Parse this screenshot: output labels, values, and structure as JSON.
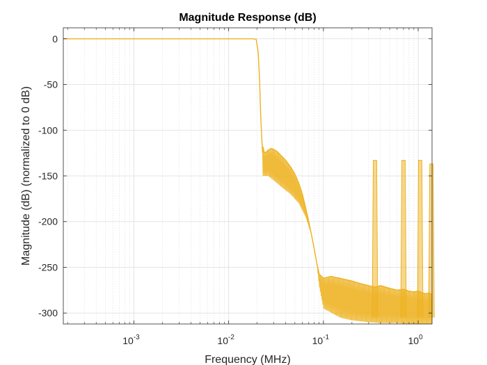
{
  "chart_data": {
    "type": "line",
    "title": "Magnitude Response (dB)",
    "xlabel": "Frequency (MHz)",
    "ylabel": "Magnitude (dB) (normalized to 0 dB)",
    "x_scale": "log",
    "xlim": [
      0.00018,
      1.4
    ],
    "ylim": [
      -312,
      12
    ],
    "grid": true,
    "color": "#EDB120",
    "x_ticks": [
      {
        "value": 0.001,
        "base": "10",
        "exp": "-3"
      },
      {
        "value": 0.01,
        "base": "10",
        "exp": "-2"
      },
      {
        "value": 0.1,
        "base": "10",
        "exp": "-1"
      },
      {
        "value": 1,
        "base": "10",
        "exp": "0"
      }
    ],
    "y_ticks": [
      0,
      -50,
      -100,
      -150,
      -200,
      -250,
      -300
    ],
    "series": [
      {
        "x": [
          0.00018,
          0.001,
          0.01,
          0.018,
          0.0195,
          0.0205,
          0.0212,
          0.0218,
          0.0224,
          0.0228,
          0.023,
          0.0235,
          0.0245,
          0.026,
          0.028,
          0.03,
          0.033,
          0.036,
          0.04,
          0.045,
          0.05,
          0.055,
          0.06,
          0.065,
          0.07,
          0.075,
          0.08,
          0.085,
          0.09,
          0.1,
          0.12,
          0.15,
          0.2,
          0.25,
          0.3,
          0.35,
          0.4,
          0.5,
          0.6,
          0.7,
          0.8,
          0.9,
          1.0,
          1.1,
          1.2,
          1.3,
          1.4
        ],
        "y": [
          0,
          0,
          0,
          0,
          -0.5,
          -15,
          -45,
          -85,
          -110,
          -125,
          -118,
          -123,
          -125,
          -122,
          -120,
          -121,
          -124,
          -128,
          -133,
          -140,
          -148,
          -158,
          -170,
          -185,
          -200,
          -215,
          -230,
          -245,
          -257,
          -262,
          -260,
          -262,
          -265,
          -268,
          -270,
          -272,
          -270,
          -273,
          -275,
          -274,
          -276,
          -277,
          -276,
          -278,
          -279,
          -278,
          -280
        ]
      }
    ],
    "envelope_low": {
      "x": [
        0.0228,
        0.026,
        0.03,
        0.036,
        0.045,
        0.055,
        0.065,
        0.075,
        0.085,
        0.09,
        0.1,
        0.15,
        0.2,
        0.3,
        0.4,
        0.6,
        0.8,
        1.0,
        1.4
      ],
      "y": [
        -150,
        -150,
        -155,
        -162,
        -170,
        -180,
        -195,
        -215,
        -245,
        -270,
        -295,
        -305,
        -308,
        -310,
        -311,
        -311,
        -312,
        -312,
        -312
      ]
    },
    "spikes": [
      {
        "x": 0.35,
        "y": -133
      },
      {
        "x": 0.7,
        "y": -133
      },
      {
        "x": 1.05,
        "y": -133
      },
      {
        "x": 1.38,
        "y": -137
      }
    ]
  }
}
